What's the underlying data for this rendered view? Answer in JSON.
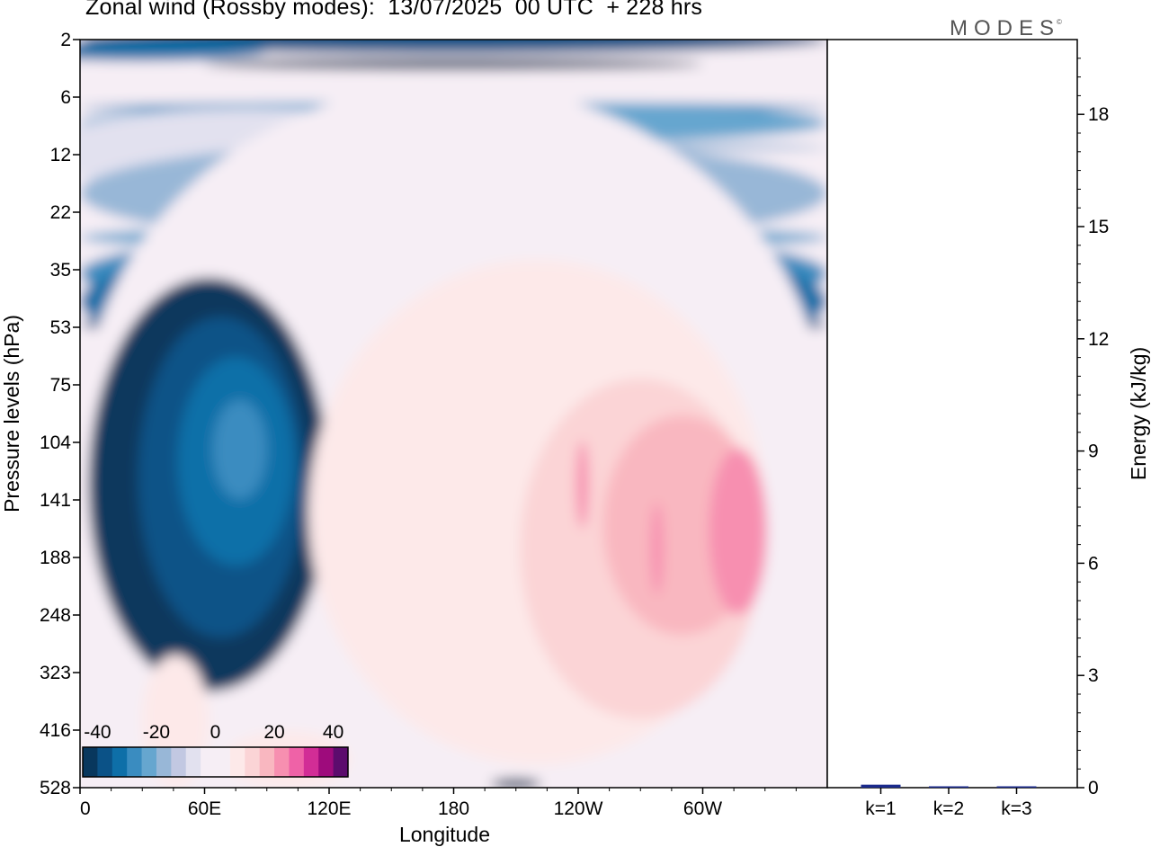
{
  "title": "Zonal wind (Rossby modes):  13/07/2025  00 UTC  + 228 hrs",
  "logo": "MODES",
  "logo_mark": "©",
  "colors": {
    "neg": [
      "#08375d",
      "#0b5287",
      "#0e6fa8",
      "#3a8cc0",
      "#66a6cf",
      "#98b7d7",
      "#c2c8e2",
      "#e2e1ef"
    ],
    "zero": "#f6eef5",
    "pos": [
      "#fde9e9",
      "#fbd4d6",
      "#f9b7c0",
      "#f78fb0",
      "#ef62a7",
      "#d22d96",
      "#9e0b7c",
      "#5c0c6d"
    ],
    "bar": "#1a2a8c"
  },
  "chart_data": [
    {
      "type": "heatmap",
      "title": "Zonal wind (Rossby modes):  13/07/2025  00 UTC  + 228 hrs",
      "xlabel": "Longitude",
      "ylabel": "Pressure levels (hPa)",
      "x_ticks": [
        "0",
        "60E",
        "120E",
        "180",
        "120W",
        "60W"
      ],
      "x_tick_degrees": [
        0,
        60,
        120,
        180,
        240,
        300
      ],
      "x_range_degrees": [
        0,
        360
      ],
      "y_ticks": [
        "2",
        "6",
        "12",
        "22",
        "35",
        "53",
        "75",
        "104",
        "141",
        "188",
        "248",
        "323",
        "416",
        "528"
      ],
      "colorbar": {
        "ticks": [
          "-40",
          "-20",
          "0",
          "20",
          "40"
        ],
        "range": [
          -45,
          45
        ],
        "step": 5
      },
      "regions": [
        {
          "lon": 180,
          "level": 2,
          "value": -10,
          "rx": 180,
          "rl": 1.3
        },
        {
          "lon": 30,
          "level": 2.5,
          "value": -13,
          "rx": 60,
          "rl": 1.2
        },
        {
          "lon": 180,
          "level": 3.2,
          "value": -5,
          "rx": 120,
          "rl": 1.0
        },
        {
          "lon": 180,
          "level": 6.8,
          "value": -20,
          "rx": 180,
          "rl": 1.0
        },
        {
          "lon": 180,
          "level": 8.2,
          "value": -25,
          "rx": 180,
          "rl": 1.3
        },
        {
          "lon": 180,
          "level": 11,
          "value": -30,
          "rx": 180,
          "rl": 1.0
        },
        {
          "lon": 80,
          "level": 11.5,
          "value": -36,
          "rx": 100,
          "rl": 0.6
        },
        {
          "lon": 180,
          "level": 18,
          "value": -30,
          "rx": 180,
          "rl": 1.6
        },
        {
          "lon": 180,
          "level": 27,
          "value": -25,
          "rx": 180,
          "rl": 0.9
        },
        {
          "lon": 180,
          "level": 36,
          "value": -20,
          "rx": 180,
          "rl": 0.7
        },
        {
          "lon": 180,
          "level": 44,
          "value": -15,
          "rx": 180,
          "rl": 0.6
        },
        {
          "lon": 180,
          "level": 52,
          "value": -10,
          "rx": 180,
          "rl": 0.9
        },
        {
          "lon": 180,
          "level": 100,
          "value": 0,
          "rx": 180,
          "rl": 6.0
        },
        {
          "lon": 62,
          "level": 130,
          "value": -5,
          "rx": 58,
          "rl": 2.7
        },
        {
          "lon": 68,
          "level": 125,
          "value": -10,
          "rx": 40,
          "rl": 2.2
        },
        {
          "lon": 75,
          "level": 115,
          "value": -15,
          "rx": 28,
          "rl": 1.7
        },
        {
          "lon": 77,
          "level": 108,
          "value": -20,
          "rx": 13,
          "rl": 1.3
        },
        {
          "lon": 220,
          "level": 150,
          "value": 5,
          "rx": 110,
          "rl": 3.2
        },
        {
          "lon": 270,
          "level": 180,
          "value": 10,
          "rx": 58,
          "rl": 2.2
        },
        {
          "lon": 290,
          "level": 160,
          "value": 15,
          "rx": 38,
          "rl": 1.7
        },
        {
          "lon": 317,
          "level": 165,
          "value": 20,
          "rx": 14,
          "rl": 1.5
        },
        {
          "lon": 242,
          "level": 130,
          "value": 20,
          "rx": 3,
          "rl": 1.25
        },
        {
          "lon": 278,
          "level": 180,
          "value": 20,
          "rx": 3,
          "rl": 1.25
        },
        {
          "lon": 46,
          "level": 400,
          "value": 5,
          "rx": 16,
          "rl": 1.8
        },
        {
          "lon": 100,
          "level": 470,
          "value": 5,
          "rx": 30,
          "rl": 1.3
        },
        {
          "lon": 210,
          "level": 520,
          "value": -5,
          "rx": 12,
          "rl": 1.3
        }
      ]
    },
    {
      "type": "bar",
      "ylabel": "Energy (kJ/kg)",
      "categories": [
        "k=1",
        "k=2",
        "k=3"
      ],
      "values": [
        0.08,
        0.03,
        0.02
      ],
      "y_ticks": [
        "0",
        "3",
        "6",
        "9",
        "12",
        "15",
        "18"
      ],
      "ylim": [
        0,
        20
      ]
    }
  ]
}
